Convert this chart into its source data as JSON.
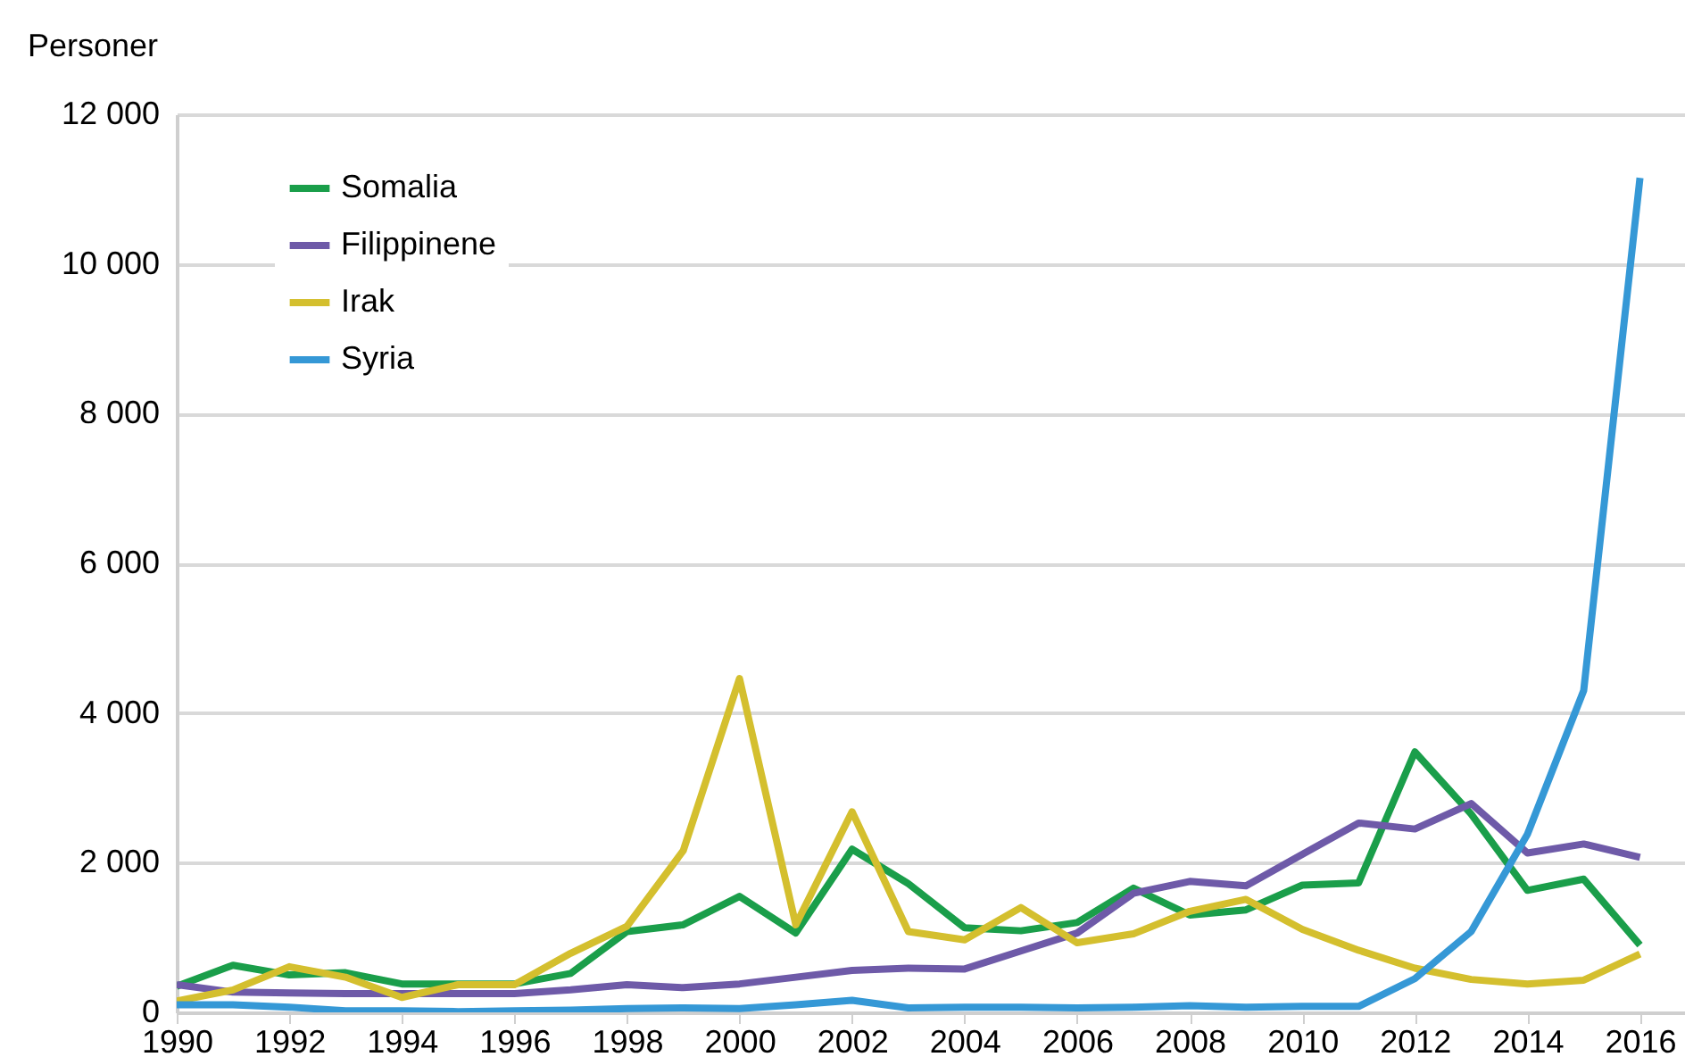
{
  "chart_data": {
    "type": "line",
    "ylabel": "Personer",
    "x": [
      1990,
      1991,
      1992,
      1993,
      1994,
      1995,
      1996,
      1997,
      1998,
      1999,
      2000,
      2001,
      2002,
      2003,
      2004,
      2005,
      2006,
      2007,
      2008,
      2009,
      2010,
      2011,
      2012,
      2013,
      2014,
      2015,
      2016
    ],
    "series": [
      {
        "name": "Somalia",
        "color": "#1a9e4a",
        "values": [
          350,
          630,
          500,
          530,
          380,
          380,
          380,
          520,
          1080,
          1170,
          1550,
          1060,
          2180,
          1720,
          1130,
          1090,
          1200,
          1660,
          1300,
          1370,
          1700,
          1730,
          3480,
          2650,
          1630,
          1780,
          900
        ]
      },
      {
        "name": "Filippinene",
        "color": "#6e5aa8",
        "values": [
          370,
          270,
          260,
          250,
          250,
          250,
          250,
          300,
          370,
          330,
          380,
          470,
          560,
          590,
          580,
          820,
          1060,
          1590,
          1750,
          1690,
          2110,
          2530,
          2450,
          2790,
          2130,
          2250,
          2070
        ]
      },
      {
        "name": "Irak",
        "color": "#d4bf2e",
        "values": [
          150,
          300,
          610,
          470,
          200,
          370,
          370,
          790,
          1150,
          2160,
          4460,
          1170,
          2680,
          1080,
          970,
          1400,
          930,
          1050,
          1350,
          1510,
          1110,
          830,
          590,
          440,
          380,
          430,
          780
        ]
      },
      {
        "name": "Syria",
        "color": "#3598d6",
        "values": [
          100,
          100,
          70,
          20,
          20,
          10,
          20,
          30,
          50,
          60,
          50,
          100,
          160,
          60,
          70,
          70,
          60,
          70,
          90,
          70,
          80,
          80,
          450,
          1080,
          2380,
          4300,
          11150
        ]
      }
    ],
    "xlim": [
      1990,
      2016.8
    ],
    "xticks": [
      1990,
      1992,
      1994,
      1996,
      1998,
      2000,
      2002,
      2004,
      2006,
      2008,
      2010,
      2012,
      2014,
      2016
    ],
    "ylim": [
      0,
      12000
    ],
    "yticks": [
      0,
      {
        "value": 2000,
        "label": "2 000"
      },
      {
        "value": 4000,
        "label": "4 000"
      },
      {
        "value": 6000,
        "label": "6 000"
      },
      {
        "value": 8000,
        "label": "8 000"
      },
      {
        "value": 10000,
        "label": "10 000"
      },
      {
        "value": 12000,
        "label": "12 000"
      }
    ],
    "grid": "y",
    "legend": "top left",
    "marker": "none",
    "line_style": "solid"
  }
}
